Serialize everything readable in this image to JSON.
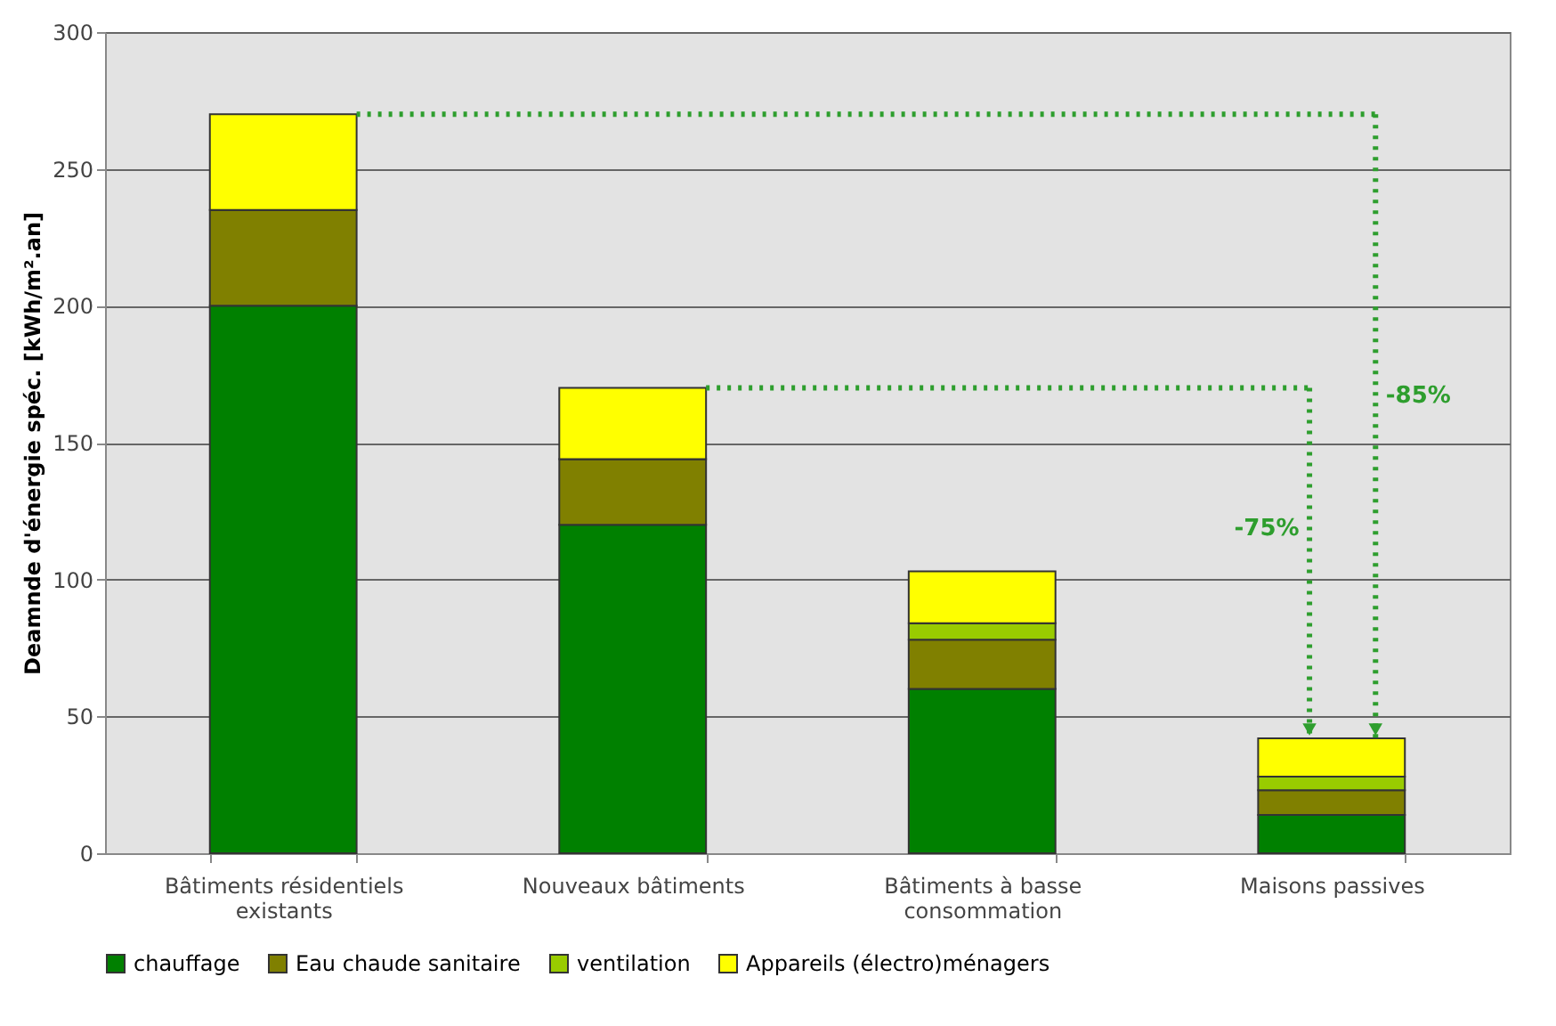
{
  "chart_data": {
    "type": "bar",
    "stacked": true,
    "ylabel": "Deamnde d'énergie spéc. [kWh/m².an]",
    "categories": [
      "Bâtiments résidentiels existants",
      "Nouveaux bâtiments",
      "Bâtiments à basse consommation",
      "Maisons passives"
    ],
    "series": [
      {
        "name": "chauffage",
        "color": "#008000",
        "values": [
          200,
          120,
          60,
          14
        ]
      },
      {
        "name": "Eau chaude sanitaire",
        "color": "#808000",
        "values": [
          35,
          24,
          18,
          9
        ]
      },
      {
        "name": "ventilation",
        "color": "#99cc00",
        "values": [
          0,
          0,
          6,
          5
        ]
      },
      {
        "name": "Appareils (électro)ménagers",
        "color": "#ffff00",
        "values": [
          35,
          26,
          19,
          14
        ]
      }
    ],
    "ylim": [
      0,
      300
    ],
    "yticks": [
      0,
      50,
      100,
      150,
      200,
      250,
      300
    ],
    "grid": "y",
    "legend": "bottom",
    "ref_lines": [
      {
        "axis": "y",
        "value": 270,
        "color": "#2e9e2e",
        "line_style": "dotted"
      },
      {
        "axis": "y",
        "value": 170,
        "color": "#2e9e2e",
        "line_style": "dotted"
      }
    ],
    "annotations": [
      "-85%",
      "-75%"
    ]
  }
}
